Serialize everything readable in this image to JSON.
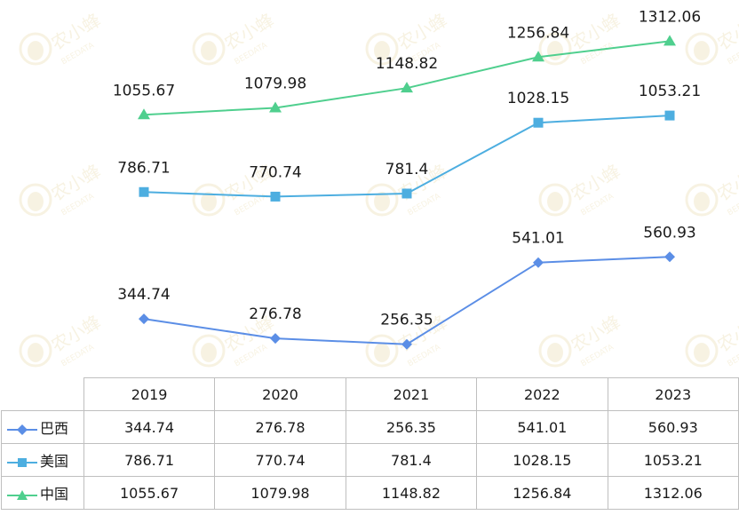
{
  "colors": {
    "巴西": "#5b8ee6",
    "美国": "#4daee0",
    "中国": "#4fcf8e",
    "grid": "#bfbfbf"
  },
  "watermark": {
    "text": "农小蜂",
    "sub": "BEEDATA"
  },
  "chart_data": {
    "type": "line",
    "categories": [
      "2019",
      "2020",
      "2021",
      "2022",
      "2023"
    ],
    "series": [
      {
        "name": "巴西",
        "marker": "diamond",
        "values": [
          344.74,
          276.78,
          256.35,
          541.01,
          560.93
        ],
        "labels": [
          "344.74",
          "276.78",
          "256.35",
          "541.01",
          "560.93"
        ]
      },
      {
        "name": "美国",
        "marker": "square",
        "values": [
          786.71,
          770.74,
          781.4,
          1028.15,
          1053.21
        ],
        "labels": [
          "786.71",
          "770.74",
          "781.4",
          "1028.15",
          "1053.21"
        ]
      },
      {
        "name": "中国",
        "marker": "triangle",
        "values": [
          1055.67,
          1079.98,
          1148.82,
          1256.84,
          1312.06
        ],
        "labels": [
          "1055.67",
          "1079.98",
          "1148.82",
          "1256.84",
          "1312.06"
        ]
      }
    ],
    "legend": "data-table",
    "grid": false
  }
}
